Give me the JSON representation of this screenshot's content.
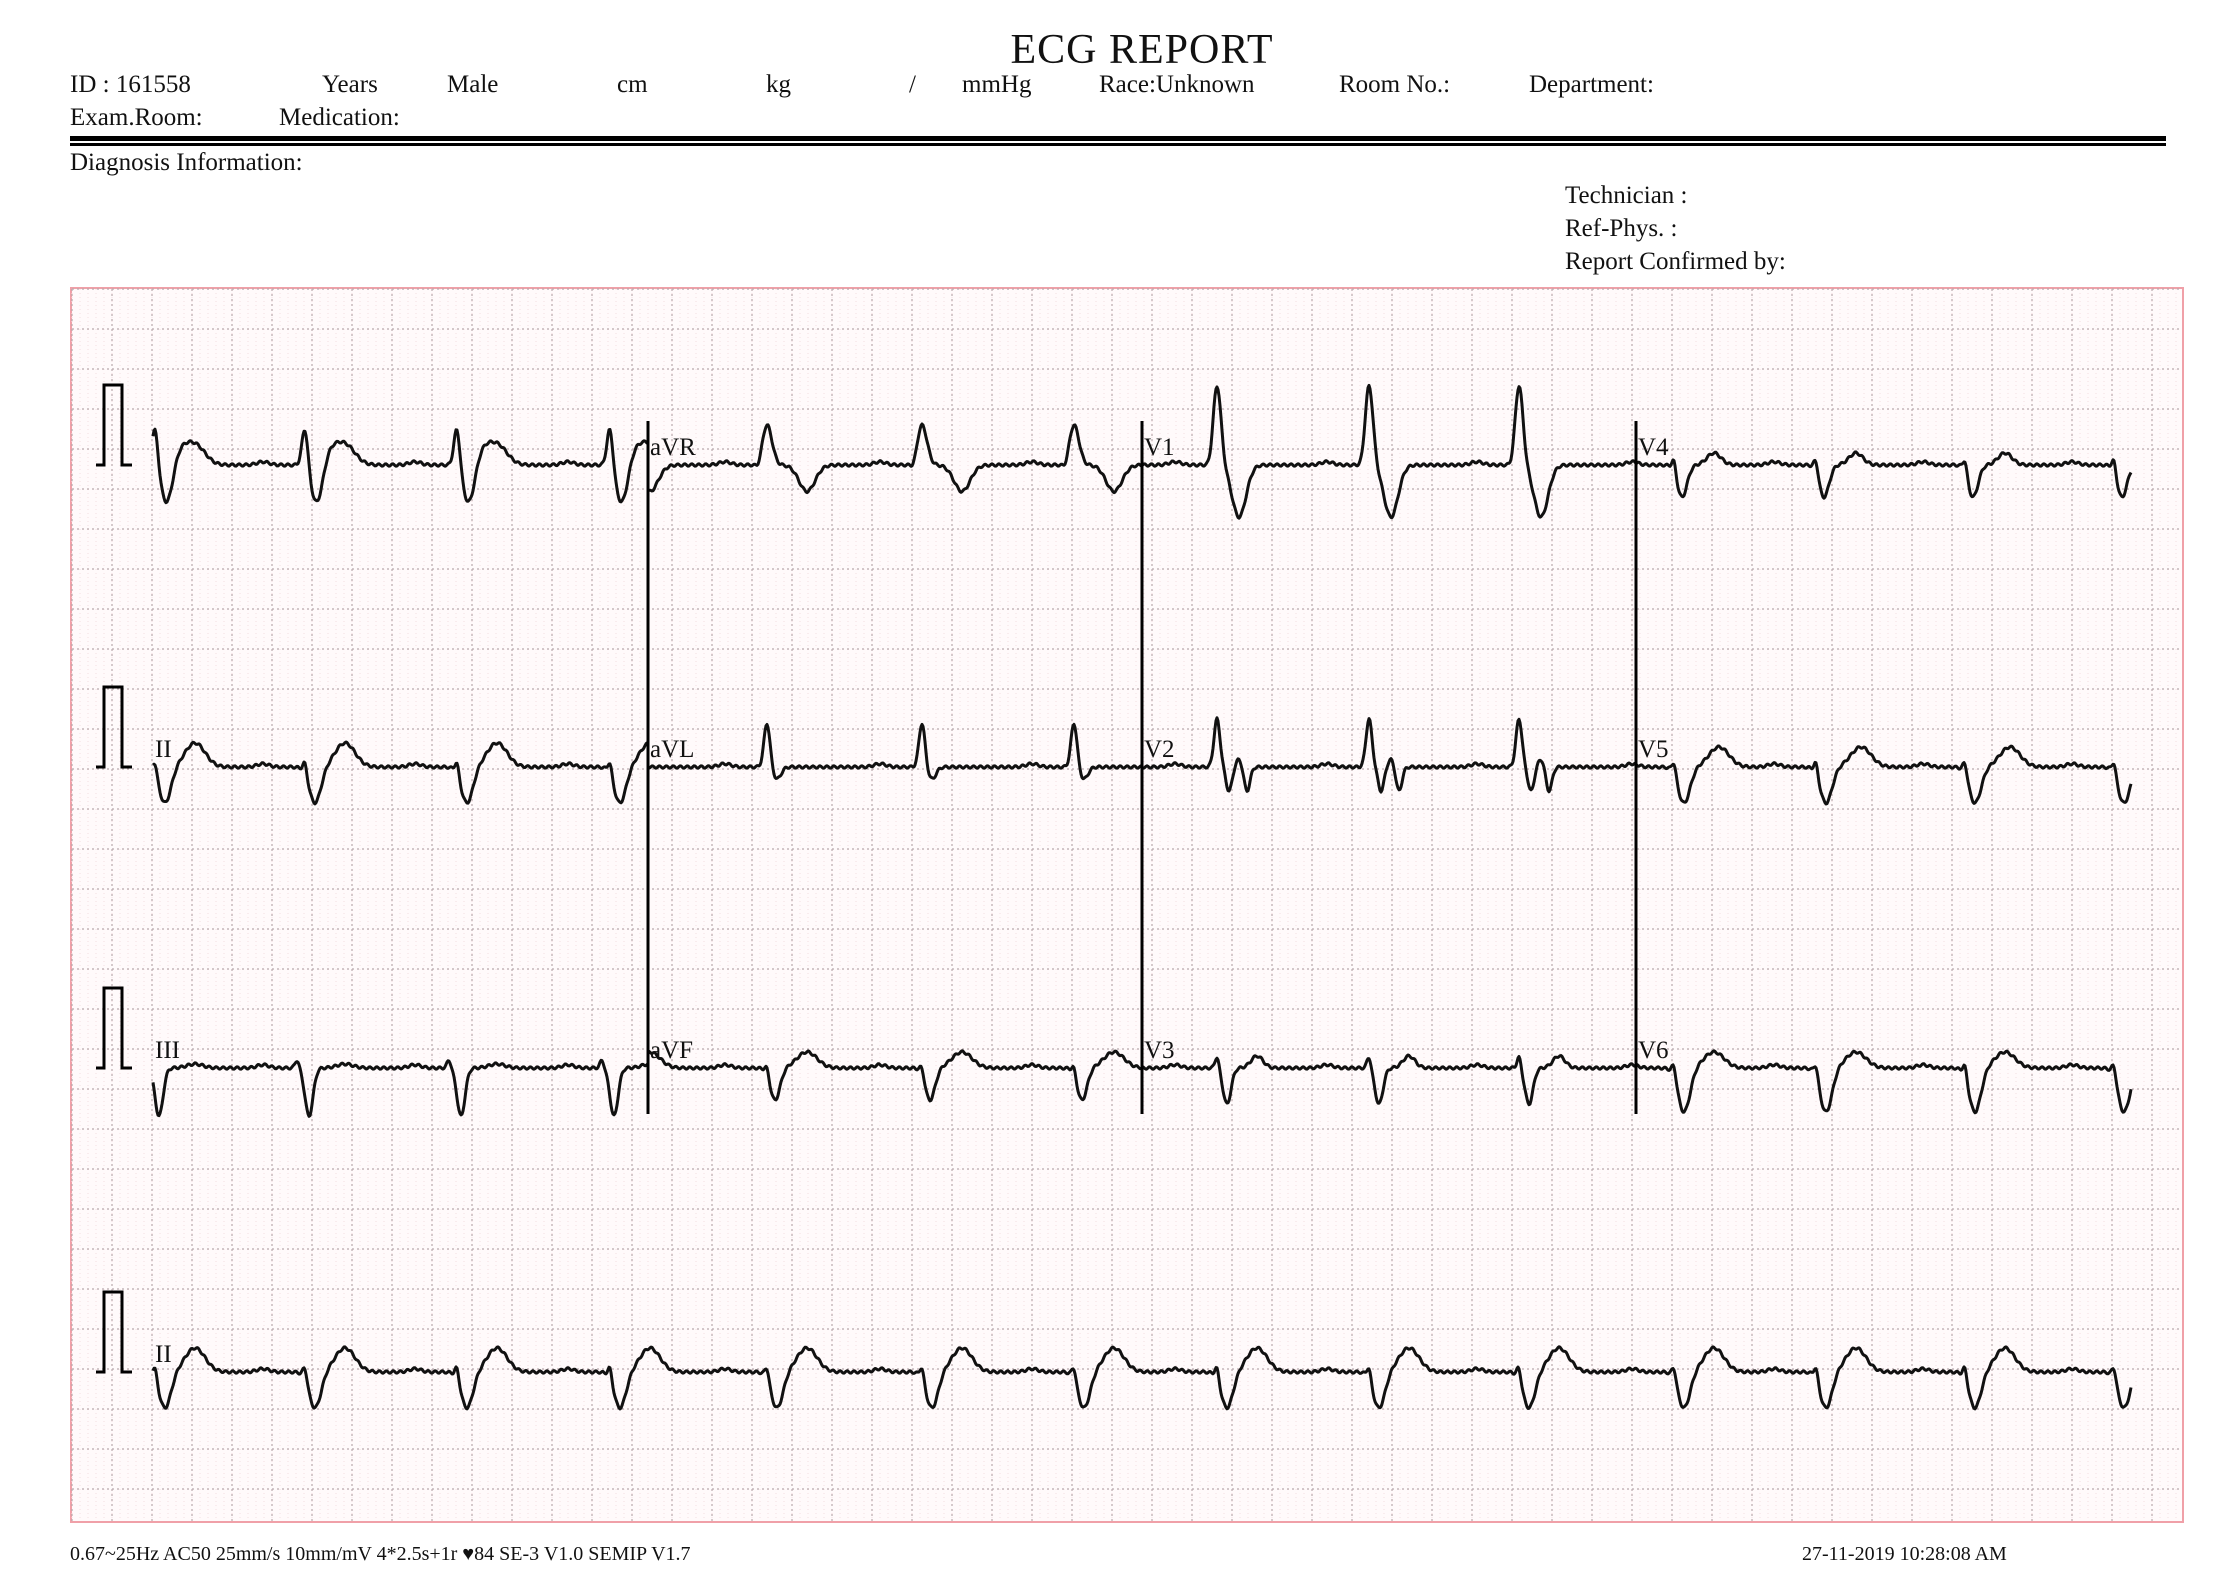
{
  "header": {
    "title": "ECG REPORT",
    "id": "ID : 161558",
    "years": "Years",
    "sex": "Male",
    "height_unit": "cm",
    "weight_unit": "kg",
    "bp_sep": "/",
    "bp_unit": "mmHg",
    "race": "Race:Unknown",
    "room": "Room  No.:",
    "department": "Department:",
    "exam_room": "Exam.Room:",
    "medication": "Medication:"
  },
  "diagnosis": {
    "label": "Diagnosis  Information:",
    "technician": "Technician :",
    "ref_phys": "Ref-Phys. :",
    "confirmed": "Report  Confirmed  by:"
  },
  "settings": {
    "speed_mm_s": 25,
    "gain_mm_mv": 10,
    "heart_rate": 84
  },
  "leads": [
    {
      "row": 0,
      "col": 0,
      "label": "",
      "morph": [
        [
          0,
          5,
          3
        ],
        [
          12,
          -5,
          6
        ],
        [
          25,
          1.5,
          8
        ],
        [
          40,
          2.5,
          10
        ]
      ]
    },
    {
      "row": 0,
      "col": 1,
      "label": "aVR",
      "morph": [
        [
          -8,
          -0.8,
          3
        ],
        [
          0,
          5,
          5
        ],
        [
          40,
          -3.3,
          8
        ]
      ]
    },
    {
      "row": 0,
      "col": 2,
      "label": "V1",
      "morph": [
        [
          -6,
          -0.6,
          3
        ],
        [
          0,
          10,
          4
        ],
        [
          22,
          -6.5,
          7
        ]
      ]
    },
    {
      "row": 0,
      "col": 3,
      "label": "V4",
      "morph": [
        [
          0,
          1.5,
          2
        ],
        [
          8,
          -4,
          5
        ],
        [
          40,
          1.5,
          7
        ]
      ]
    },
    {
      "row": 1,
      "col": 0,
      "label": "II",
      "morph": [
        [
          0,
          1.5,
          2
        ],
        [
          10,
          -4.5,
          6
        ],
        [
          40,
          3,
          10
        ]
      ]
    },
    {
      "row": 1,
      "col": 1,
      "label": "aVL",
      "morph": [
        [
          0,
          5.5,
          3
        ],
        [
          10,
          -1.5,
          4
        ]
      ]
    },
    {
      "row": 1,
      "col": 2,
      "label": "V2",
      "morph": [
        [
          0,
          6,
          3
        ],
        [
          12,
          -3,
          3
        ],
        [
          22,
          1,
          3
        ],
        [
          30,
          -3,
          3
        ]
      ]
    },
    {
      "row": 1,
      "col": 3,
      "label": "V5",
      "morph": [
        [
          0,
          1.5,
          2
        ],
        [
          10,
          -4.5,
          6
        ],
        [
          45,
          2.5,
          10
        ]
      ]
    },
    {
      "row": 2,
      "col": 0,
      "label": "III",
      "morph": [
        [
          -8,
          1,
          2
        ],
        [
          4,
          -6,
          4
        ],
        [
          40,
          0.5,
          8
        ]
      ]
    },
    {
      "row": 2,
      "col": 1,
      "label": "aVF",
      "morph": [
        [
          0,
          1,
          2
        ],
        [
          8,
          -4,
          5
        ],
        [
          40,
          2,
          10
        ]
      ]
    },
    {
      "row": 2,
      "col": 2,
      "label": "V3",
      "morph": [
        [
          0,
          1.5,
          2
        ],
        [
          10,
          -4.5,
          4
        ],
        [
          40,
          1.5,
          6
        ]
      ]
    },
    {
      "row": 2,
      "col": 3,
      "label": "V6",
      "morph": [
        [
          0,
          1.5,
          2
        ],
        [
          10,
          -5.5,
          6
        ],
        [
          40,
          2,
          10
        ]
      ]
    },
    {
      "row": 3,
      "col": -1,
      "label": "II",
      "morph": [
        [
          0,
          1.5,
          2
        ],
        [
          10,
          -4.5,
          6
        ],
        [
          40,
          3,
          10
        ]
      ]
    }
  ],
  "footer": {
    "left": "0.67~25Hz  AC50  25mm/s  10mm/mV  4*2.5s+1r  ♥84    SE-3  V1.0  SEMIP  V1.7",
    "right": "27-11-2019    10:28:08  AM"
  }
}
